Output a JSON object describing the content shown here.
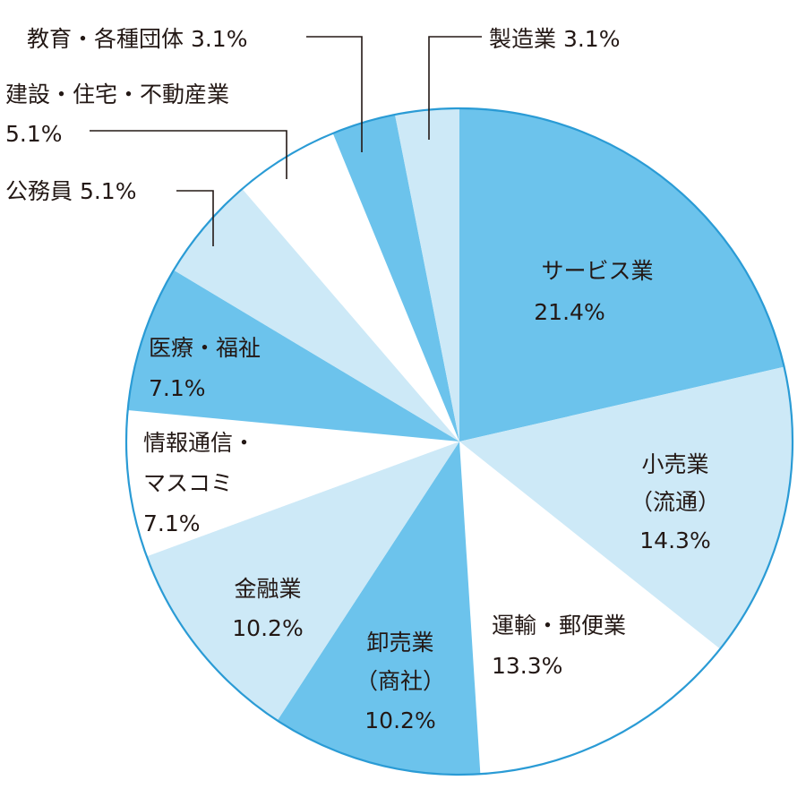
{
  "chart_data": {
    "type": "pie",
    "title": "",
    "start_angle_deg": 0,
    "direction": "clockwise",
    "colors": {
      "dark": "#6cc3ec",
      "light": "#cde9f7",
      "white": "#ffffff",
      "outline": "#2a9bd5"
    },
    "slices": [
      {
        "name": "サービス業",
        "value": 21.4,
        "value_label": "21.4%",
        "fill": "dark"
      },
      {
        "name": "小売業（流通）",
        "value": 14.3,
        "value_label": "14.3%",
        "fill": "light"
      },
      {
        "name": "運輸・郵便業",
        "value": 13.3,
        "value_label": "13.3%",
        "fill": "white"
      },
      {
        "name": "卸売業（商社）",
        "value": 10.2,
        "value_label": "10.2%",
        "fill": "dark"
      },
      {
        "name": "金融業",
        "value": 10.2,
        "value_label": "10.2%",
        "fill": "light"
      },
      {
        "name": "情報通信・マスコミ",
        "value": 7.1,
        "value_label": "7.1%",
        "fill": "white"
      },
      {
        "name": "医療・福祉",
        "value": 7.1,
        "value_label": "7.1%",
        "fill": "dark"
      },
      {
        "name": "公務員",
        "value": 5.1,
        "value_label": "5.1%",
        "fill": "light"
      },
      {
        "name": "建設・住宅・不動産業",
        "value": 5.1,
        "value_label": "5.1%",
        "fill": "white"
      },
      {
        "name": "教育・各種団体",
        "value": 3.1,
        "value_label": "3.1%",
        "fill": "dark"
      },
      {
        "name": "製造業",
        "value": 3.1,
        "value_label": "3.1%",
        "fill": "light"
      }
    ],
    "labels": {
      "service": {
        "line1": "サービス業",
        "line2": "21.4%"
      },
      "retail": {
        "line1": "小売業",
        "line2": "（流通）",
        "line3": "14.3%"
      },
      "transport": {
        "line1": "運輸・郵便業",
        "line2": "13.3%"
      },
      "wholesale": {
        "line1": "卸売業",
        "line2": "（商社）",
        "line3": "10.2%"
      },
      "finance": {
        "line1": "金融業",
        "line2": "10.2%"
      },
      "info": {
        "line1": "情報通信・",
        "line2": "マスコミ",
        "line3": "7.1%"
      },
      "medical": {
        "line1": "医療・福祉",
        "line2": "7.1%"
      },
      "public": {
        "text": "公務員 5.1%"
      },
      "construction": {
        "line1": "建設・住宅・不動産業",
        "line2": "5.1%"
      },
      "education": {
        "text": "教育・各種団体 3.1%"
      },
      "manufacturing": {
        "text": "製造業 3.1%"
      }
    }
  }
}
